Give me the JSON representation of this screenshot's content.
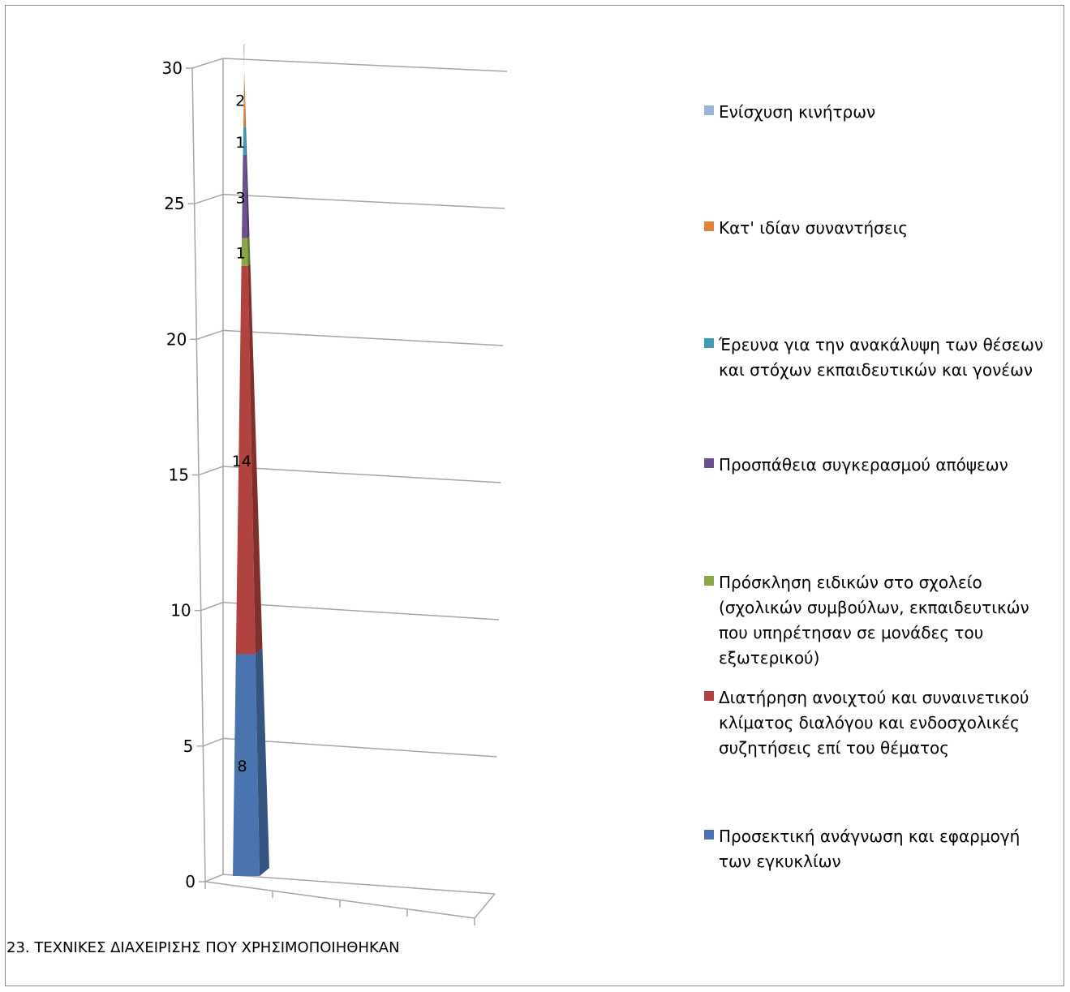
{
  "chart_data": {
    "type": "bar",
    "stacked": true,
    "three_d": true,
    "title": "23. ΤΕΧΝΙΚΕΣ ΔΙΑΧΕΙΡΙΣΗΣ ΠΟΥ ΧΡΗΣΙΜΟΠΟΙΗΘΗΚΑΝ",
    "ylim": [
      0,
      30
    ],
    "yticks": [
      "0",
      "5",
      "10",
      "15",
      "20",
      "25",
      "30"
    ],
    "grid": true,
    "legend_position": "right",
    "series": [
      {
        "name": "Προσεκτική ανάγνωση και εφαρμογή των εγκυκλίων",
        "value": 8,
        "label": "8",
        "color": "#4a74b0"
      },
      {
        "name": "Διατήρηση ανοιχτού και συναινετικού κλίματος διαλόγου και ενδοσχολικές συζητήσεις επί του θέματος",
        "value": 14,
        "label": "14",
        "color": "#b0433f"
      },
      {
        "name": "Πρόσκληση ειδικών στο σχολείο (σχολικών συμβούλων, εκπαιδευτικών που υπηρέτησαν σε μονάδες του εξωτερικού)",
        "value": 1,
        "label": "1",
        "color": "#8aa64a"
      },
      {
        "name": "Προσπάθεια συγκερασμού απόψεων",
        "value": 3,
        "label": "3",
        "color": "#6b4f8f"
      },
      {
        "name": "Έρευνα για την ανακάλυψη των θέσεων και στόχων εκπαιδευτικών και γονέων",
        "value": 1,
        "label": "1",
        "color": "#3c9db5"
      },
      {
        "name": "Κατ' ιδίαν συναντήσεις",
        "value": 2,
        "label": "2",
        "color": "#e0823a"
      },
      {
        "name": "Ενίσχυση κινήτρων",
        "value": 1,
        "label": "",
        "color": "#9db4da"
      }
    ]
  }
}
